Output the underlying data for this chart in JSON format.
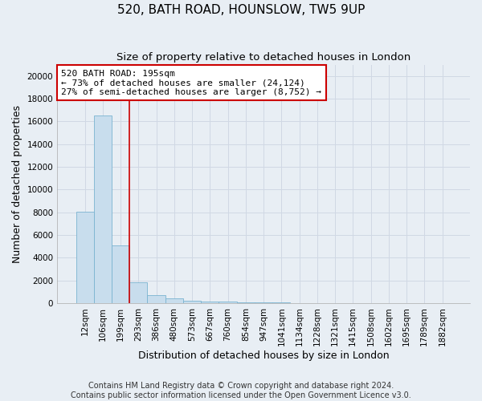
{
  "title": "520, BATH ROAD, HOUNSLOW, TW5 9UP",
  "subtitle": "Size of property relative to detached houses in London",
  "xlabel": "Distribution of detached houses by size in London",
  "ylabel": "Number of detached properties",
  "categories": [
    "12sqm",
    "106sqm",
    "199sqm",
    "293sqm",
    "386sqm",
    "480sqm",
    "573sqm",
    "667sqm",
    "760sqm",
    "854sqm",
    "947sqm",
    "1041sqm",
    "1134sqm",
    "1228sqm",
    "1321sqm",
    "1415sqm",
    "1508sqm",
    "1602sqm",
    "1695sqm",
    "1789sqm",
    "1882sqm"
  ],
  "values": [
    8050,
    16500,
    5100,
    1800,
    700,
    380,
    220,
    150,
    110,
    80,
    50,
    30,
    20,
    10,
    5,
    3,
    2,
    1,
    1,
    0,
    0
  ],
  "bar_color": "#c8dded",
  "bar_edge_color": "#7ab3d0",
  "vline_pos": 2.5,
  "annotation_title": "520 BATH ROAD: 195sqm",
  "annotation_line1": "← 73% of detached houses are smaller (24,124)",
  "annotation_line2": "27% of semi-detached houses are larger (8,752) →",
  "vline_color": "#cc0000",
  "ylim": [
    0,
    21000
  ],
  "yticks": [
    0,
    2000,
    4000,
    6000,
    8000,
    10000,
    12000,
    14000,
    16000,
    18000,
    20000
  ],
  "footer1": "Contains HM Land Registry data © Crown copyright and database right 2024.",
  "footer2": "Contains public sector information licensed under the Open Government Licence v3.0.",
  "background_color": "#e8eef4",
  "grid_color": "#d0d8e4",
  "title_fontsize": 11,
  "subtitle_fontsize": 9.5,
  "axis_label_fontsize": 9,
  "tick_fontsize": 7.5,
  "footer_fontsize": 7
}
